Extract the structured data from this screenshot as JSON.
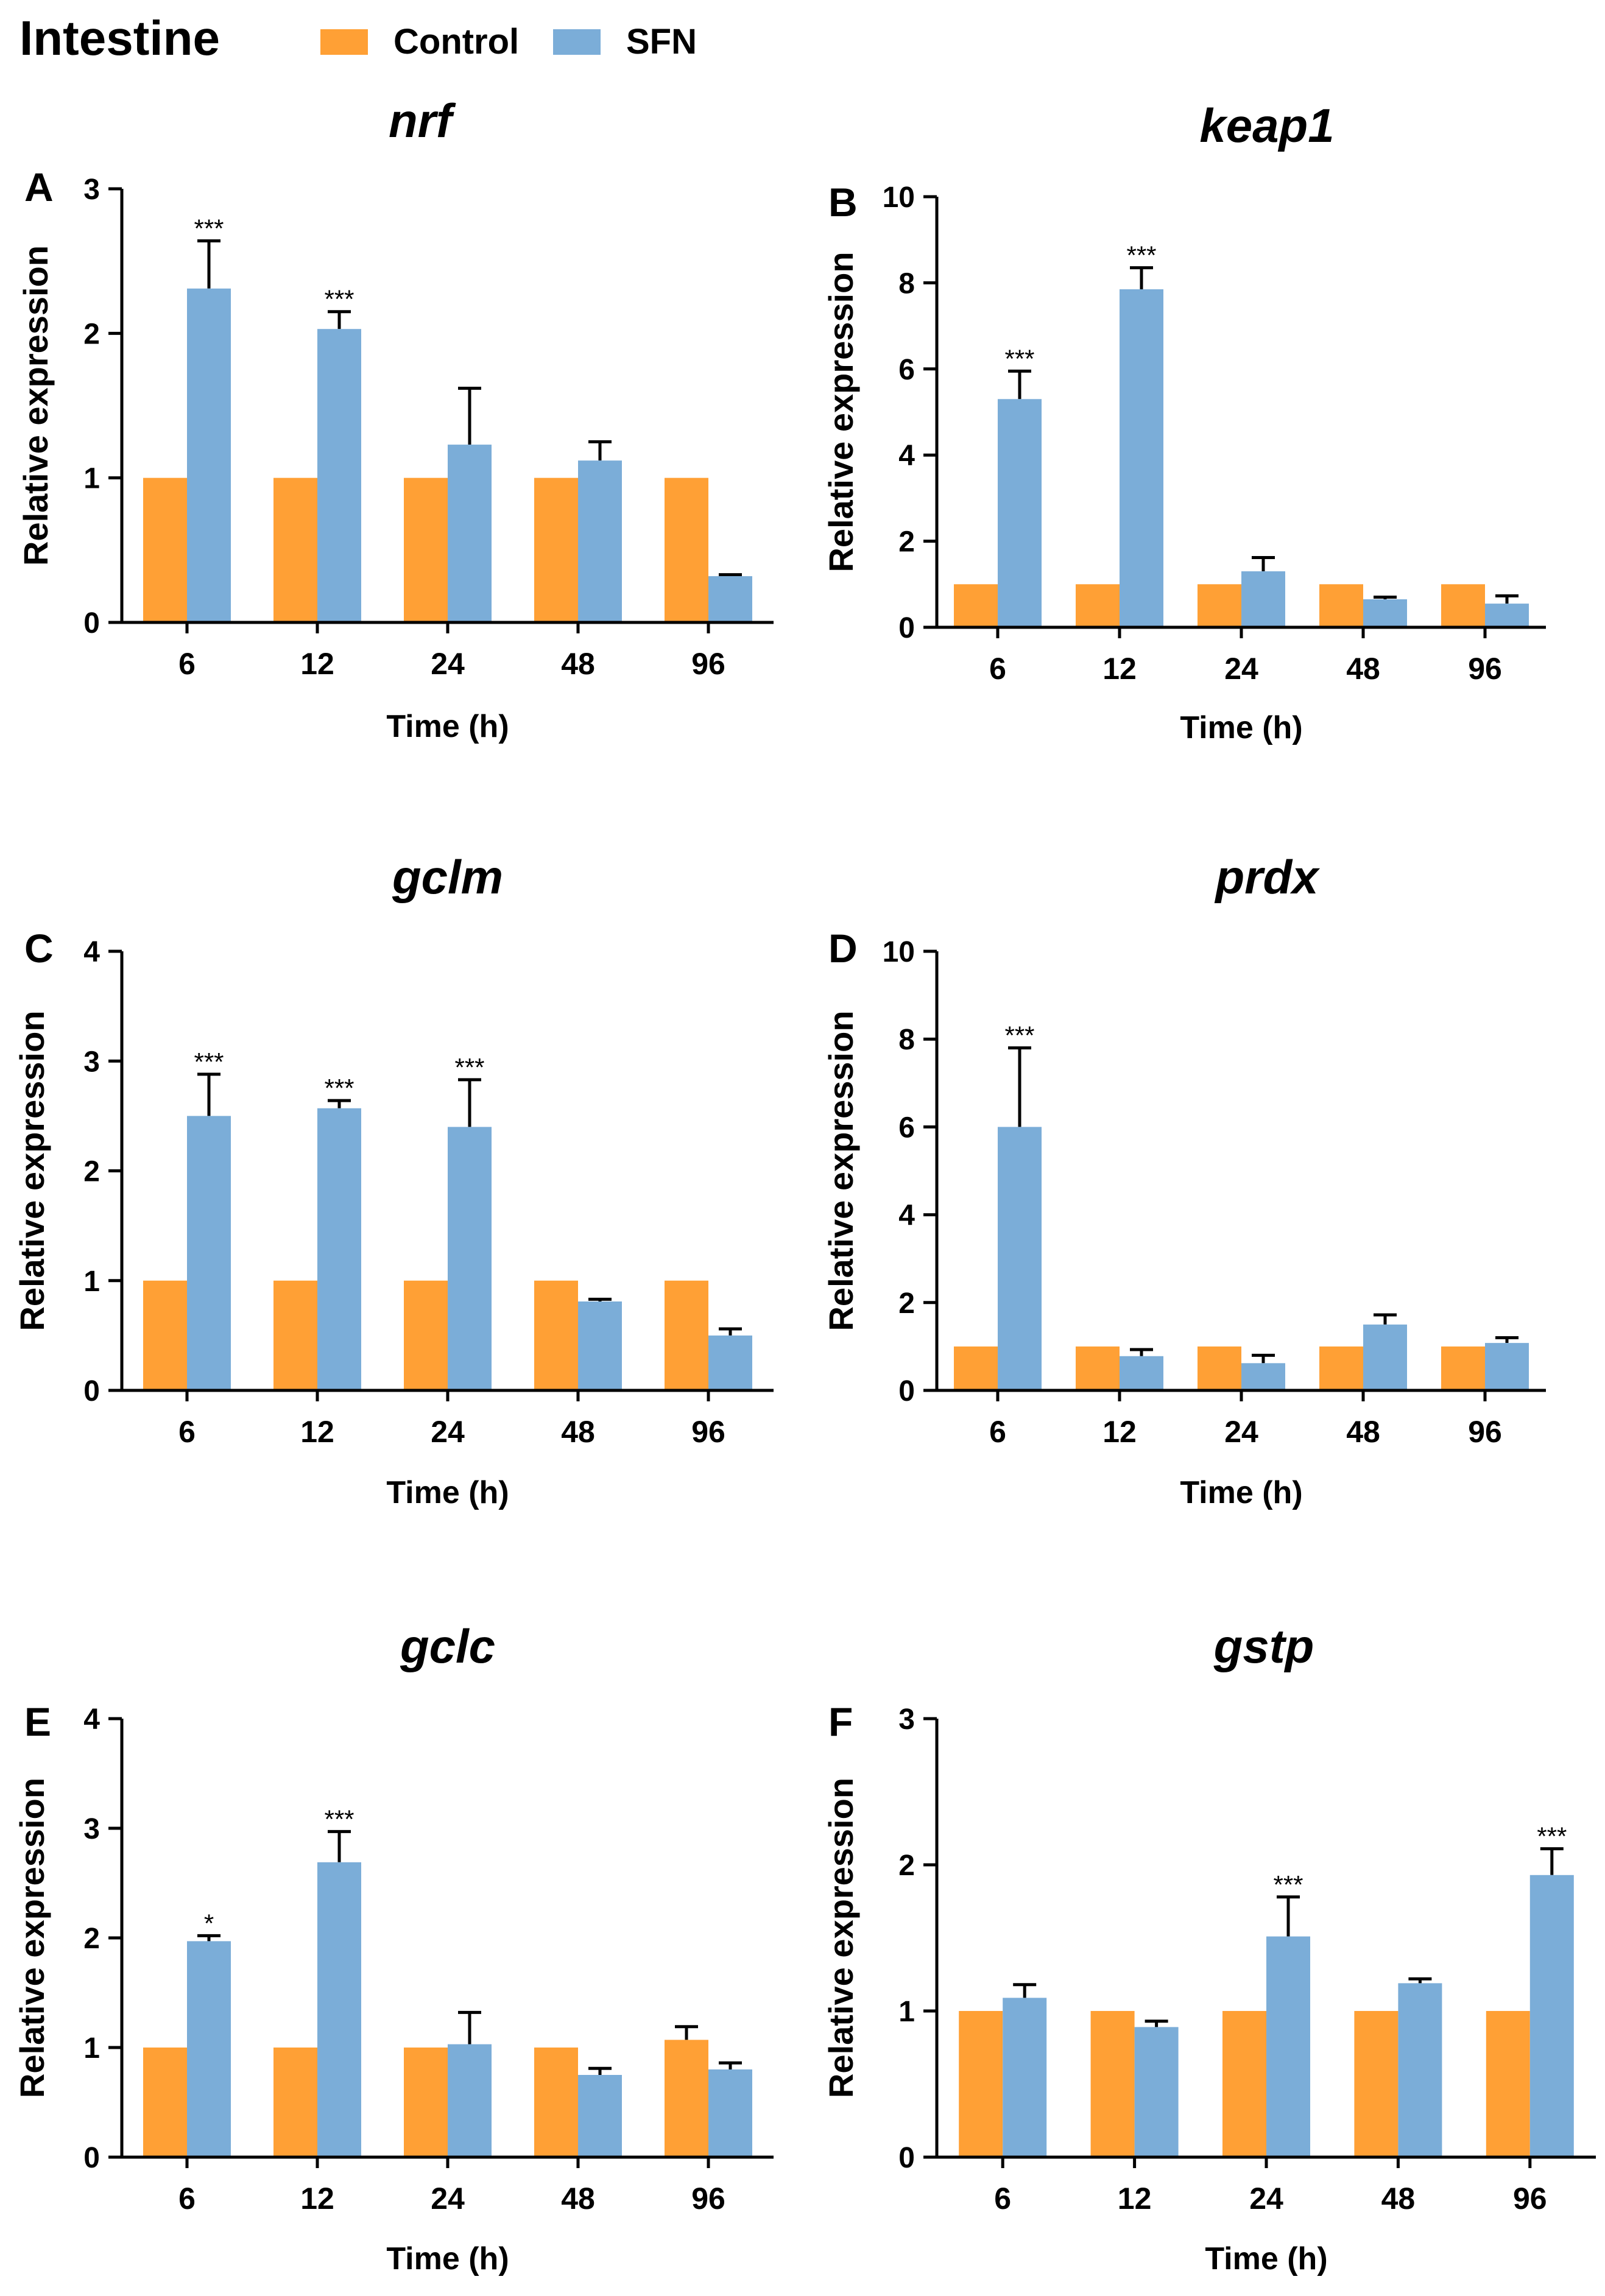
{
  "figure_title": "Intestine",
  "legend": [
    {
      "label": "Control",
      "color": "#FFA035"
    },
    {
      "label": "SFN",
      "color": "#7BADD8"
    }
  ],
  "colors": {
    "control": "#FFA035",
    "sfn": "#7BADD8",
    "axis": "#000000"
  },
  "chart_data": [
    {
      "type": "bar",
      "panel": "A",
      "title": "nrf",
      "xlabel": "Time (h)",
      "ylabel": "Relative expression",
      "categories": [
        "6",
        "12",
        "24",
        "48",
        "96"
      ],
      "ylim": [
        0,
        3
      ],
      "yticks": [
        0,
        1,
        2,
        3
      ],
      "series": [
        {
          "name": "Control",
          "values": [
            1,
            1,
            1,
            1,
            1
          ],
          "errors": [
            0,
            0,
            0,
            0,
            0
          ]
        },
        {
          "name": "SFN",
          "values": [
            2.31,
            2.03,
            1.23,
            1.12,
            0.32
          ],
          "errors": [
            0.33,
            0.12,
            0.39,
            0.13,
            0.01
          ],
          "annotations": [
            "***",
            "***",
            "",
            "",
            ""
          ]
        }
      ]
    },
    {
      "type": "bar",
      "panel": "B",
      "title": "keap1",
      "xlabel": "Time (h)",
      "ylabel": "Relative expression",
      "categories": [
        "6",
        "12",
        "24",
        "48",
        "96"
      ],
      "ylim": [
        0,
        10
      ],
      "yticks": [
        0,
        2,
        4,
        6,
        8,
        10
      ],
      "series": [
        {
          "name": "Control",
          "values": [
            1,
            1,
            1,
            1,
            1
          ],
          "errors": [
            0,
            0,
            0,
            0,
            0
          ]
        },
        {
          "name": "SFN",
          "values": [
            5.3,
            7.85,
            1.3,
            0.65,
            0.55
          ],
          "errors": [
            0.65,
            0.5,
            0.32,
            0.05,
            0.18
          ],
          "annotations": [
            "***",
            "***",
            "",
            "",
            ""
          ]
        }
      ]
    },
    {
      "type": "bar",
      "panel": "C",
      "title": "gclm",
      "xlabel": "Time (h)",
      "ylabel": "Relative expression",
      "categories": [
        "6",
        "12",
        "24",
        "48",
        "96"
      ],
      "ylim": [
        0,
        4
      ],
      "yticks": [
        0,
        1,
        2,
        3,
        4
      ],
      "series": [
        {
          "name": "Control",
          "values": [
            1,
            1,
            1,
            1,
            1
          ],
          "errors": [
            0,
            0,
            0,
            0,
            0
          ]
        },
        {
          "name": "SFN",
          "values": [
            2.5,
            2.57,
            2.4,
            0.81,
            0.5
          ],
          "errors": [
            0.38,
            0.07,
            0.43,
            0.02,
            0.06
          ],
          "annotations": [
            "***",
            "***",
            "***",
            "",
            ""
          ]
        }
      ]
    },
    {
      "type": "bar",
      "panel": "D",
      "title": "prdx",
      "xlabel": "Time (h)",
      "ylabel": "Relative expression",
      "categories": [
        "6",
        "12",
        "24",
        "48",
        "96"
      ],
      "ylim": [
        0,
        10
      ],
      "yticks": [
        0,
        2,
        4,
        6,
        8,
        10
      ],
      "series": [
        {
          "name": "Control",
          "values": [
            1,
            1,
            1,
            1,
            1
          ],
          "errors": [
            0,
            0,
            0,
            0,
            0
          ]
        },
        {
          "name": "SFN",
          "values": [
            6.0,
            0.78,
            0.62,
            1.5,
            1.08
          ],
          "errors": [
            1.8,
            0.15,
            0.18,
            0.22,
            0.12
          ],
          "annotations": [
            "***",
            "",
            "",
            "",
            ""
          ]
        }
      ]
    },
    {
      "type": "bar",
      "panel": "E",
      "title": "gclc",
      "xlabel": "Time (h)",
      "ylabel": "Relative expression",
      "categories": [
        "6",
        "12",
        "24",
        "48",
        "96"
      ],
      "ylim": [
        0,
        4
      ],
      "yticks": [
        0,
        1,
        2,
        3,
        4
      ],
      "series": [
        {
          "name": "Control",
          "values": [
            1,
            1,
            1,
            1,
            1.07
          ],
          "errors": [
            0,
            0,
            0,
            0,
            0.12
          ]
        },
        {
          "name": "SFN",
          "values": [
            1.97,
            2.69,
            1.03,
            0.75,
            0.8
          ],
          "errors": [
            0.05,
            0.28,
            0.29,
            0.06,
            0.06
          ],
          "annotations": [
            "*",
            "***",
            "",
            "",
            ""
          ]
        }
      ]
    },
    {
      "type": "bar",
      "panel": "F",
      "title": "gstp",
      "xlabel": "Time (h)",
      "ylabel": "Relative expression",
      "categories": [
        "6",
        "12",
        "24",
        "48",
        "96"
      ],
      "ylim": [
        0,
        3
      ],
      "yticks": [
        0,
        1,
        2,
        3
      ],
      "series": [
        {
          "name": "Control",
          "values": [
            1,
            1,
            1,
            1,
            1
          ],
          "errors": [
            0,
            0,
            0,
            0,
            0
          ]
        },
        {
          "name": "SFN",
          "values": [
            1.09,
            0.89,
            1.51,
            1.19,
            1.93
          ],
          "errors": [
            0.09,
            0.04,
            0.27,
            0.03,
            0.18
          ],
          "annotations": [
            "",
            "",
            "***",
            "",
            "***"
          ]
        }
      ]
    }
  ]
}
